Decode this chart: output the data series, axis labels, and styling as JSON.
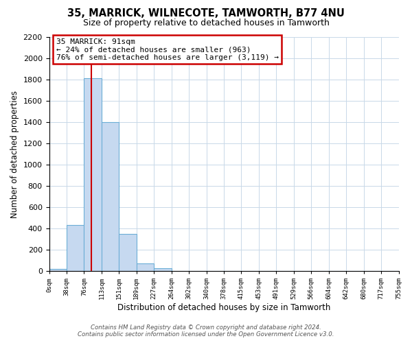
{
  "title": "35, MARRICK, WILNECOTE, TAMWORTH, B77 4NU",
  "subtitle": "Size of property relative to detached houses in Tamworth",
  "xlabel": "Distribution of detached houses by size in Tamworth",
  "ylabel": "Number of detached properties",
  "bin_labels": [
    "0sqm",
    "38sqm",
    "76sqm",
    "113sqm",
    "151sqm",
    "189sqm",
    "227sqm",
    "264sqm",
    "302sqm",
    "340sqm",
    "378sqm",
    "415sqm",
    "453sqm",
    "491sqm",
    "529sqm",
    "566sqm",
    "604sqm",
    "642sqm",
    "680sqm",
    "717sqm",
    "755sqm"
  ],
  "bar_values": [
    20,
    430,
    1810,
    1400,
    350,
    75,
    25,
    0,
    0,
    0,
    0,
    0,
    0,
    0,
    0,
    0,
    0,
    0,
    0,
    0
  ],
  "bar_color": "#c6d9f0",
  "bar_edge_color": "#6baed6",
  "annotation_title": "35 MARRICK: 91sqm",
  "annotation_line1": "← 24% of detached houses are smaller (963)",
  "annotation_line2": "76% of semi-detached houses are larger (3,119) →",
  "annotation_box_color": "#ffffff",
  "annotation_border_color": "#cc0000",
  "vline_color": "#cc0000",
  "ylim": [
    0,
    2200
  ],
  "yticks": [
    0,
    200,
    400,
    600,
    800,
    1000,
    1200,
    1400,
    1600,
    1800,
    2000,
    2200
  ],
  "footer_line1": "Contains HM Land Registry data © Crown copyright and database right 2024.",
  "footer_line2": "Contains public sector information licensed under the Open Government Licence v3.0.",
  "background_color": "#ffffff",
  "grid_color": "#c8d8e8"
}
